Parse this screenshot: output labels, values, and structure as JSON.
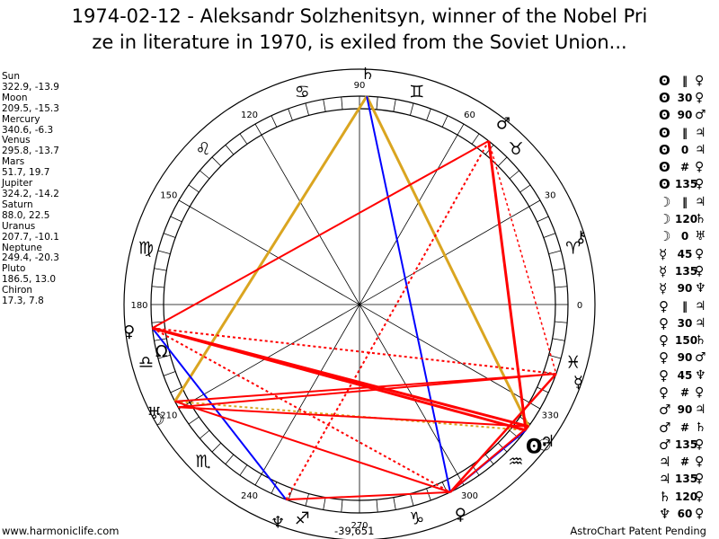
{
  "header": {
    "title_line1": "1974-02-12 - Aleksandr Solzhenitsyn, winner of the Nobel Pri",
    "title_line2": "ze in literature in 1970, is exiled from the Soviet Union..."
  },
  "planets": [
    {
      "name": "Sun",
      "coords": "322.9, -13.9",
      "glyph": "☉",
      "lon": 322.9
    },
    {
      "name": "Moon",
      "coords": "209.5, -15.3",
      "glyph": "☽",
      "lon": 209.5
    },
    {
      "name": "Mercury",
      "coords": "340.6, -6.3",
      "glyph": "☿",
      "lon": 340.6
    },
    {
      "name": "Venus",
      "coords": "295.8, -13.7",
      "glyph": "♀",
      "lon": 295.8
    },
    {
      "name": "Mars",
      "coords": "51.7, 19.7",
      "glyph": "♂",
      "lon": 51.7
    },
    {
      "name": "Jupiter",
      "coords": "324.2, -14.2",
      "glyph": "♃",
      "lon": 324.2
    },
    {
      "name": "Saturn",
      "coords": "88.0, 22.5",
      "glyph": "♄",
      "lon": 88.0
    },
    {
      "name": "Uranus",
      "coords": "207.7, -10.1",
      "glyph": "♅",
      "lon": 207.7
    },
    {
      "name": "Neptune",
      "coords": "249.4, -20.3",
      "glyph": "♆",
      "lon": 249.4
    },
    {
      "name": "Pluto",
      "coords": "186.5, 13.0",
      "glyph": "♀",
      "lon": 186.5
    },
    {
      "name": "Chiron",
      "coords": "17.3, 7.8",
      "glyph": "⚷",
      "lon": 17.3
    }
  ],
  "wheel_labels": [
    "0",
    "30",
    "60",
    "90",
    "120",
    "150",
    "180",
    "210",
    "240",
    "270",
    "300",
    "330"
  ],
  "signs": [
    "♈",
    "♉",
    "♊",
    "♋",
    "♌",
    "♍",
    "♎",
    "♏",
    "♐",
    "♑",
    "♒",
    "♓"
  ],
  "extra_glyphs": [
    "Ω",
    "ʘ"
  ],
  "aspects": [
    {
      "p1": "ʘ",
      "sym": "‖",
      "p2": "♀"
    },
    {
      "p1": "ʘ",
      "sym": "30",
      "p2": "♀"
    },
    {
      "p1": "ʘ",
      "sym": "90",
      "p2": "♂"
    },
    {
      "p1": "ʘ",
      "sym": "‖",
      "p2": "♃"
    },
    {
      "p1": "ʘ",
      "sym": "0",
      "p2": "♃"
    },
    {
      "p1": "ʘ",
      "sym": "#",
      "p2": "♀"
    },
    {
      "p1": "ʘ",
      "sym": "135",
      "p2": "♀"
    },
    {
      "p1": "☽",
      "sym": "‖",
      "p2": "♃"
    },
    {
      "p1": "☽",
      "sym": "120",
      "p2": "♄"
    },
    {
      "p1": "☽",
      "sym": "0",
      "p2": "♅"
    },
    {
      "p1": "☿",
      "sym": "45",
      "p2": "♀"
    },
    {
      "p1": "☿",
      "sym": "135",
      "p2": "♀"
    },
    {
      "p1": "☿",
      "sym": "90",
      "p2": "♆"
    },
    {
      "p1": "♀",
      "sym": "‖",
      "p2": "♃"
    },
    {
      "p1": "♀",
      "sym": "30",
      "p2": "♃"
    },
    {
      "p1": "♀",
      "sym": "150",
      "p2": "♄"
    },
    {
      "p1": "♀",
      "sym": "90",
      "p2": "♂"
    },
    {
      "p1": "♀",
      "sym": "45",
      "p2": "♆"
    },
    {
      "p1": "♀",
      "sym": "#",
      "p2": "♀"
    },
    {
      "p1": "♂",
      "sym": "90",
      "p2": "♃"
    },
    {
      "p1": "♂",
      "sym": "#",
      "p2": "♄"
    },
    {
      "p1": "♂",
      "sym": "135",
      "p2": "♀"
    },
    {
      "p1": "♃",
      "sym": "#",
      "p2": "♀"
    },
    {
      "p1": "♃",
      "sym": "135",
      "p2": "♀"
    },
    {
      "p1": "♄",
      "sym": "120",
      "p2": "♀"
    },
    {
      "p1": "♆",
      "sym": "60",
      "p2": "♀"
    }
  ],
  "colors": {
    "square": "#ff0000",
    "trine": "#0000ff",
    "parallel": "#daa520",
    "ring": "#000000"
  },
  "footer": {
    "website": "www.harmoniclife.com",
    "value": "-39,651",
    "brand": "AstroChart Patent Pending"
  }
}
